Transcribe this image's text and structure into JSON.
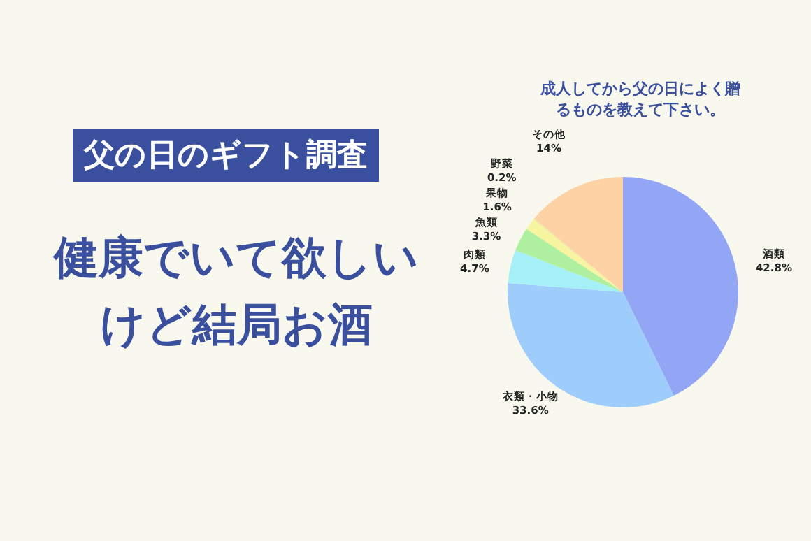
{
  "chart_data": {
    "type": "pie",
    "title": "成人してから父の日によく贈るものを教えて下さい。",
    "categories": [
      "酒類",
      "衣類・小物",
      "肉類",
      "魚類",
      "果物",
      "野菜",
      "その他"
    ],
    "values": [
      42.8,
      33.6,
      4.7,
      3.3,
      1.6,
      0.2,
      14
    ],
    "value_labels": [
      "42.8%",
      "33.6%",
      "4.7%",
      "3.3%",
      "1.6%",
      "0.2%",
      "14%"
    ],
    "colors": [
      "#93a6f5",
      "#9fcdfb",
      "#a6f0f8",
      "#aef0a0",
      "#f8f5a0",
      "#f3e9a0",
      "#fdd3a6"
    ],
    "legend": false,
    "annotations": [
      "父の日のギフト調査",
      "健康でいて欲しいけど結局お酒"
    ]
  }
}
